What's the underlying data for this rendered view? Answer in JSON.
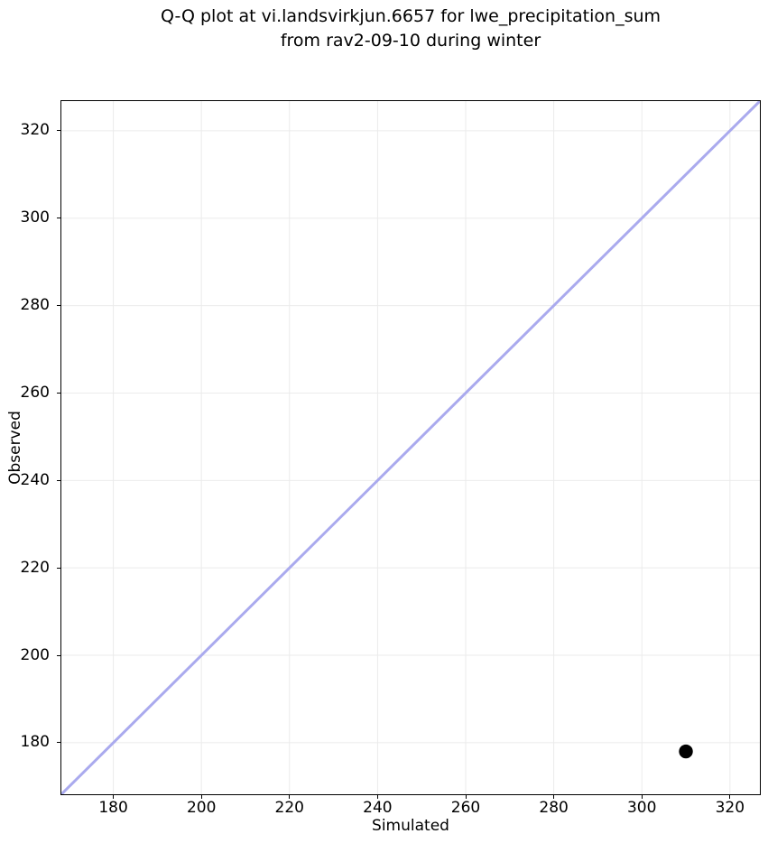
{
  "figure": {
    "background": "#ffffff"
  },
  "chart_data": {
    "type": "scatter",
    "title": "Q-Q plot at vi.landsvirkjun.6657 for lwe_precipitation_sum from rav2-09-10 during winter",
    "title_lines": [
      "Q-Q plot at vi.landsvirkjun.6657 for lwe_precipitation_sum",
      "from rav2-09-10 during winter"
    ],
    "xlabel": "Simulated",
    "ylabel": "Observed",
    "xlim": [
      168,
      327
    ],
    "ylim": [
      168,
      327
    ],
    "xticks": [
      180,
      200,
      220,
      240,
      260,
      280,
      300,
      320
    ],
    "yticks": [
      180,
      200,
      220,
      240,
      260,
      280,
      300,
      320
    ],
    "grid": true,
    "legend": "none",
    "colors": {
      "grid": "#ebebeb",
      "spine": "#000000",
      "tick": "#000000",
      "text": "#000000"
    },
    "series": [
      {
        "name": "identity-line",
        "kind": "line",
        "color": "#aaaaee",
        "stroke_width": 3,
        "points": [
          [
            168,
            168
          ],
          [
            327,
            327
          ]
        ]
      },
      {
        "name": "qq-point",
        "kind": "scatter",
        "color": "#000000",
        "marker_radius": 7.7,
        "points": [
          [
            310,
            178
          ]
        ]
      }
    ]
  }
}
